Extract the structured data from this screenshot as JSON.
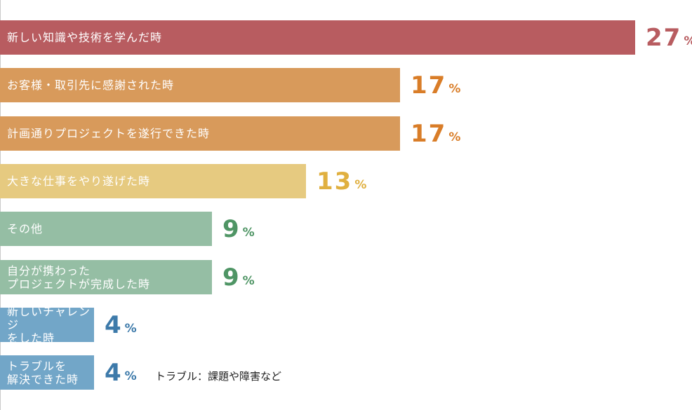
{
  "chart_data": {
    "type": "bar",
    "orientation": "horizontal",
    "title": "",
    "xlabel": "",
    "ylabel": "",
    "xlim": [
      0,
      27
    ],
    "grid": false,
    "legend": "none",
    "unit": "%",
    "categories": [
      "新しい知識や技術を学んだ時",
      "お客様・取引先に感謝された時",
      "計画通りプロジェクトを遂行できた時",
      "大きな仕事をやり遂げた時",
      "その他",
      "自分が携わった\nプロジェクトが完成した時",
      "新しいチャレンジ\nをした時",
      "トラブルを\n解決できた時"
    ],
    "values": [
      27,
      17,
      17,
      13,
      9,
      9,
      4,
      4
    ],
    "annotations": [
      {
        "category_index": 7,
        "text": "トラブル：課題や障害など"
      }
    ],
    "colors": {
      "bars": [
        "#b85c60",
        "#d89a5b",
        "#d89a5b",
        "#e6ca80",
        "#95bea4",
        "#95bea4",
        "#72a6c8",
        "#72a6c8"
      ],
      "values": [
        "#b85c60",
        "#d97d28",
        "#d97d28",
        "#e0b040",
        "#4f9565",
        "#4f9565",
        "#3d7aaa",
        "#3d7aaa"
      ]
    }
  }
}
